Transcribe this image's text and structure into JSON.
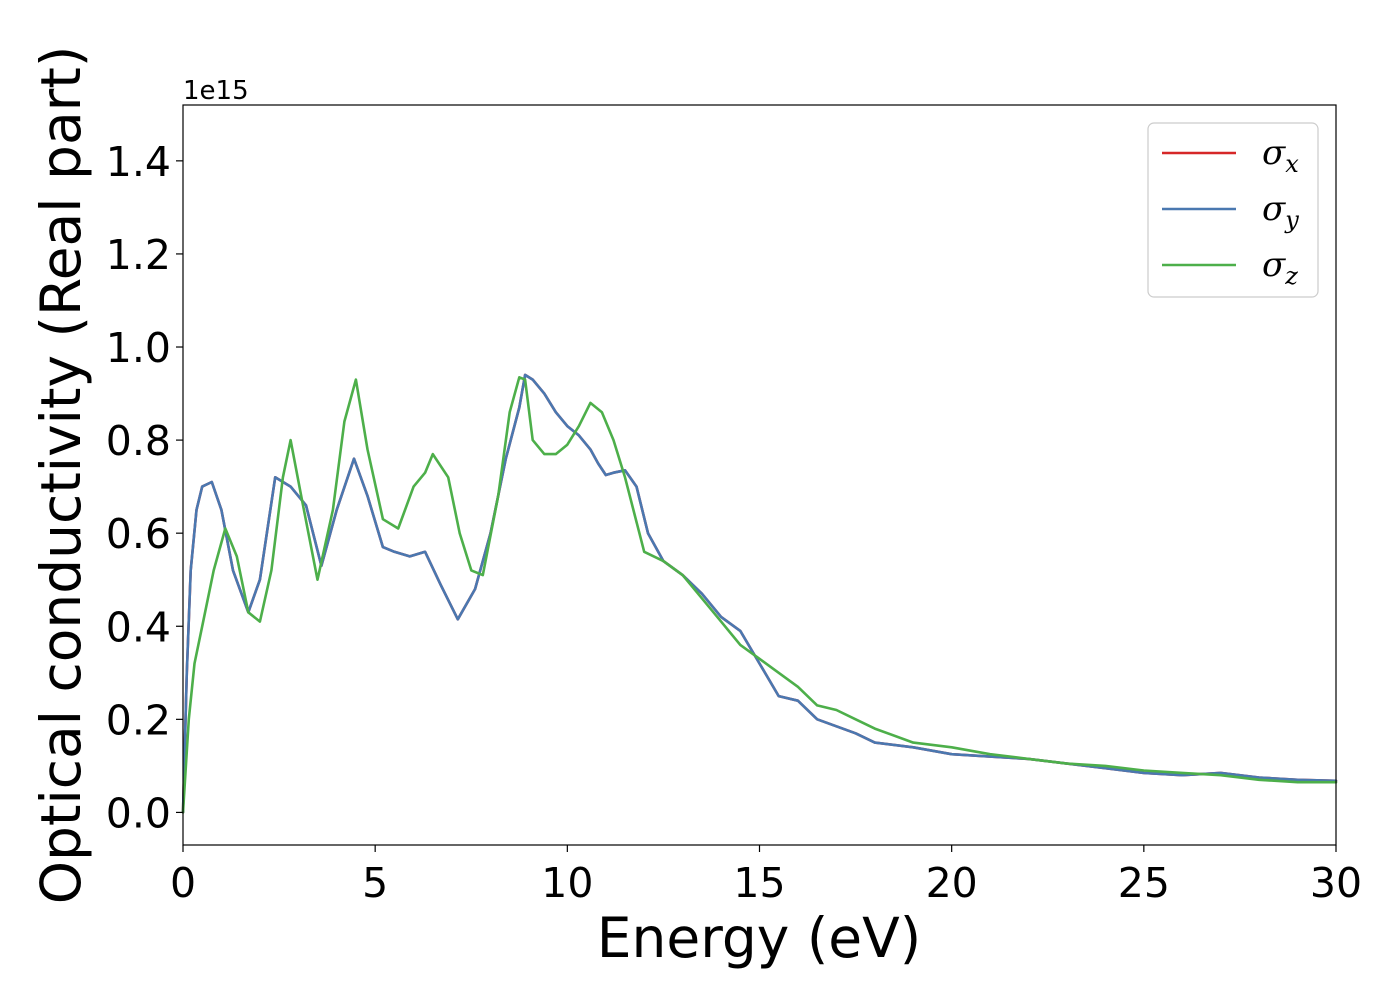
{
  "chart_data": {
    "type": "line",
    "title": "",
    "xlabel": "Energy (eV)",
    "ylabel": "Optical conductivity (Real part)",
    "y_offset_label": "1e15",
    "xlim": [
      0,
      30
    ],
    "ylim": [
      -0.07,
      1.52
    ],
    "xticks": [
      0,
      5,
      10,
      15,
      20,
      25,
      30
    ],
    "xtick_labels": [
      "0",
      "5",
      "10",
      "15",
      "20",
      "25",
      "30"
    ],
    "yticks": [
      0.0,
      0.2,
      0.4,
      0.6,
      0.8,
      1.0,
      1.2,
      1.4
    ],
    "ytick_labels": [
      "0.0",
      "0.2",
      "0.4",
      "0.6",
      "0.8",
      "1.0",
      "1.2",
      "1.4"
    ],
    "grid": false,
    "legend_position": "top-right",
    "series": [
      {
        "name": "σx",
        "legend_base": "σ",
        "legend_sub": "x",
        "color": "#d62728",
        "x": [
          0,
          0.1,
          0.2,
          0.35,
          0.5,
          0.75,
          1.0,
          1.3,
          1.7,
          2.0,
          2.4,
          2.8,
          3.2,
          3.6,
          4.0,
          4.45,
          4.8,
          5.2,
          5.5,
          5.9,
          6.3,
          6.7,
          7.15,
          7.6,
          8.0,
          8.4,
          8.75,
          8.9,
          9.1,
          9.4,
          9.7,
          10.0,
          10.3,
          10.6,
          10.8,
          11.0,
          11.2,
          11.5,
          11.8,
          12.1,
          12.5,
          13.0,
          13.5,
          14.0,
          14.5,
          15.0,
          15.5,
          16.0,
          16.5,
          17.0,
          17.5,
          18.0,
          19.0,
          20.0,
          21.0,
          22.0,
          23.0,
          24.0,
          25.0,
          26.0,
          27.0,
          28.0,
          29.0,
          30.0
        ],
        "y": [
          0.0,
          0.3,
          0.52,
          0.65,
          0.7,
          0.71,
          0.65,
          0.52,
          0.43,
          0.5,
          0.72,
          0.7,
          0.66,
          0.53,
          0.65,
          0.76,
          0.68,
          0.57,
          0.56,
          0.55,
          0.56,
          0.49,
          0.415,
          0.48,
          0.6,
          0.76,
          0.87,
          0.94,
          0.93,
          0.9,
          0.86,
          0.83,
          0.81,
          0.78,
          0.75,
          0.725,
          0.73,
          0.735,
          0.7,
          0.6,
          0.54,
          0.51,
          0.47,
          0.42,
          0.39,
          0.32,
          0.25,
          0.24,
          0.2,
          0.185,
          0.17,
          0.15,
          0.14,
          0.125,
          0.12,
          0.115,
          0.105,
          0.095,
          0.085,
          0.08,
          0.085,
          0.075,
          0.07,
          0.068
        ]
      },
      {
        "name": "σy",
        "legend_base": "σ",
        "legend_sub": "y",
        "color": "#4a78b0",
        "x": [
          0,
          0.1,
          0.2,
          0.35,
          0.5,
          0.75,
          1.0,
          1.3,
          1.7,
          2.0,
          2.4,
          2.8,
          3.2,
          3.6,
          4.0,
          4.45,
          4.8,
          5.2,
          5.5,
          5.9,
          6.3,
          6.7,
          7.15,
          7.6,
          8.0,
          8.4,
          8.75,
          8.9,
          9.1,
          9.4,
          9.7,
          10.0,
          10.3,
          10.6,
          10.8,
          11.0,
          11.2,
          11.5,
          11.8,
          12.1,
          12.5,
          13.0,
          13.5,
          14.0,
          14.5,
          15.0,
          15.5,
          16.0,
          16.5,
          17.0,
          17.5,
          18.0,
          19.0,
          20.0,
          21.0,
          22.0,
          23.0,
          24.0,
          25.0,
          26.0,
          27.0,
          28.0,
          29.0,
          30.0
        ],
        "y": [
          0.0,
          0.3,
          0.52,
          0.65,
          0.7,
          0.71,
          0.65,
          0.52,
          0.43,
          0.5,
          0.72,
          0.7,
          0.66,
          0.53,
          0.65,
          0.76,
          0.68,
          0.57,
          0.56,
          0.55,
          0.56,
          0.49,
          0.415,
          0.48,
          0.6,
          0.76,
          0.87,
          0.94,
          0.93,
          0.9,
          0.86,
          0.83,
          0.81,
          0.78,
          0.75,
          0.725,
          0.73,
          0.735,
          0.7,
          0.6,
          0.54,
          0.51,
          0.47,
          0.42,
          0.39,
          0.32,
          0.25,
          0.24,
          0.2,
          0.185,
          0.17,
          0.15,
          0.14,
          0.125,
          0.12,
          0.115,
          0.105,
          0.095,
          0.085,
          0.08,
          0.085,
          0.075,
          0.07,
          0.068
        ]
      },
      {
        "name": "σz",
        "legend_base": "σ",
        "legend_sub": "z",
        "color": "#4daf4a",
        "x": [
          0,
          0.15,
          0.3,
          0.5,
          0.8,
          1.1,
          1.4,
          1.7,
          2.0,
          2.3,
          2.6,
          2.8,
          3.1,
          3.5,
          3.9,
          4.2,
          4.5,
          4.8,
          5.2,
          5.6,
          6.0,
          6.3,
          6.5,
          6.9,
          7.2,
          7.5,
          7.8,
          8.2,
          8.5,
          8.75,
          8.9,
          9.1,
          9.4,
          9.7,
          10.0,
          10.3,
          10.6,
          10.9,
          11.2,
          11.5,
          12.0,
          12.5,
          13.0,
          13.5,
          14.0,
          14.5,
          15.0,
          15.5,
          16.0,
          16.5,
          17.0,
          17.5,
          18.0,
          19.0,
          20.0,
          21.0,
          22.0,
          23.0,
          24.0,
          25.0,
          26.0,
          27.0,
          28.0,
          29.0,
          30.0
        ],
        "y": [
          0.0,
          0.2,
          0.32,
          0.4,
          0.52,
          0.61,
          0.55,
          0.43,
          0.41,
          0.52,
          0.72,
          0.8,
          0.67,
          0.5,
          0.65,
          0.84,
          0.93,
          0.78,
          0.63,
          0.61,
          0.7,
          0.73,
          0.77,
          0.72,
          0.6,
          0.52,
          0.51,
          0.68,
          0.86,
          0.935,
          0.93,
          0.8,
          0.77,
          0.77,
          0.79,
          0.83,
          0.88,
          0.86,
          0.8,
          0.72,
          0.56,
          0.54,
          0.51,
          0.46,
          0.41,
          0.36,
          0.33,
          0.3,
          0.27,
          0.23,
          0.22,
          0.2,
          0.18,
          0.15,
          0.14,
          0.125,
          0.115,
          0.105,
          0.1,
          0.09,
          0.085,
          0.08,
          0.07,
          0.065,
          0.065
        ]
      }
    ]
  }
}
